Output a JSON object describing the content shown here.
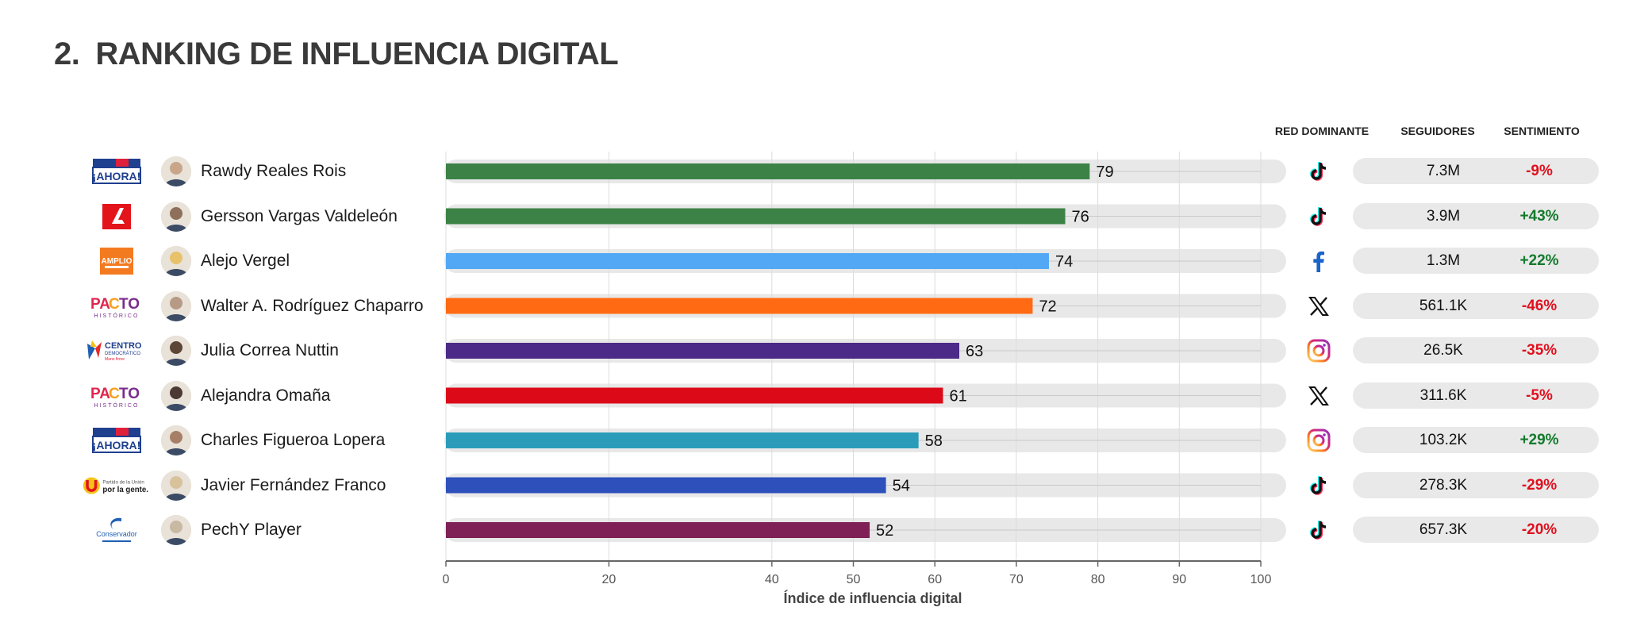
{
  "page": {
    "title_number": "2.",
    "title_text": "RANKING DE INFLUENCIA DIGITAL",
    "col_red": "RED DOMINANTE",
    "col_seg": "SEGUIDORES",
    "col_sent": "SENTIMIENTO"
  },
  "chart_data": {
    "type": "bar",
    "orientation": "horizontal",
    "xlabel": "Índice de influencia digital",
    "xlim": [
      0,
      100
    ],
    "ticks": [
      0,
      20,
      40,
      50,
      60,
      70,
      80,
      90,
      100
    ],
    "grid": true,
    "categories": [
      "Rawdy Reales Rois",
      "Gersson Vargas Valdeleón",
      "Alejo Vergel",
      "Walter A. Rodríguez Chaparro",
      "Julia Correa Nuttin",
      "Alejandra Omaña",
      "Charles Figueroa Lopera",
      "Javier Fernández Franco",
      "PechY Player"
    ],
    "values": [
      79,
      76,
      74,
      72,
      63,
      61,
      58,
      54,
      52
    ],
    "bar_colors": [
      "#3c8246",
      "#3c8246",
      "#52a8f5",
      "#ff6a12",
      "#4b2b87",
      "#dc0a18",
      "#2a9cba",
      "#2d50bb",
      "#7f2156"
    ],
    "red_dominante": [
      "tiktok",
      "tiktok",
      "facebook",
      "x",
      "instagram",
      "x",
      "instagram",
      "tiktok",
      "tiktok"
    ],
    "seguidores": [
      "7.3M",
      "3.9M",
      "1.3M",
      "561.1K",
      "26.5K",
      "311.6K",
      "103.2K",
      "278.3K",
      "657.3K"
    ],
    "sentimiento": [
      "-9%",
      "+43%",
      "+22%",
      "-46%",
      "-35%",
      "-5%",
      "+29%",
      "-29%",
      "-20%"
    ]
  },
  "party_logos": [
    {
      "icon": "ahora-logo",
      "text": "¡AHORA!"
    },
    {
      "icon": "liberal-logo",
      "text": "L"
    },
    {
      "icon": "alianza-verde-logo",
      "text": "AMPLIO"
    },
    {
      "icon": "pacto-historico-logo",
      "text": "PACTO"
    },
    {
      "icon": "centro-democratico-logo",
      "text": "CENTRO"
    },
    {
      "icon": "pacto-historico-logo",
      "text": "PACTO"
    },
    {
      "icon": "ahora-logo",
      "text": "¡AHORA!"
    },
    {
      "icon": "partido-de-la-u-logo",
      "text": "por la gente."
    },
    {
      "icon": "partido-conservador-logo",
      "text": "Conservador"
    }
  ],
  "colors": {
    "positive": "#137a2c",
    "negative": "#e0101e",
    "track": "#e8e8e8",
    "axis": "#666666"
  }
}
